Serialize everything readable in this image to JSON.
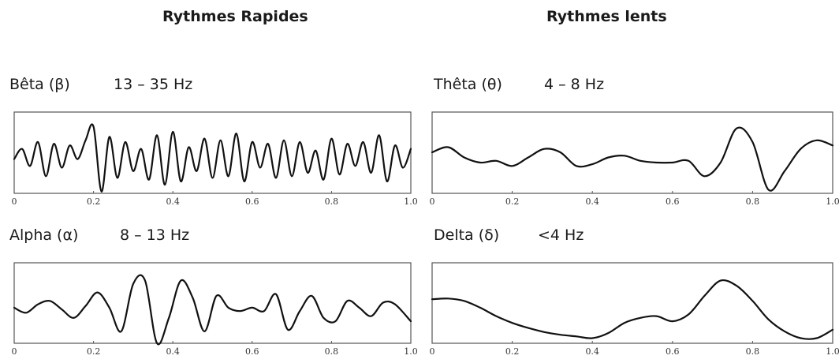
{
  "titles": {
    "fast": "Rythmes Rapides",
    "slow": "Rythmes lents"
  },
  "bands": [
    {
      "name": "Bêta (β)",
      "range": "13 – 35 Hz"
    },
    {
      "name": "Thêta (θ)",
      "range": "4 – 8 Hz"
    },
    {
      "name": "Alpha (α)",
      "range": "8 – 13 Hz"
    },
    {
      "name": "Delta (δ)",
      "range": "<4 Hz"
    }
  ],
  "chart_data": [
    {
      "type": "line",
      "band": "beta",
      "xlim": [
        0,
        1.0
      ],
      "x_ticks": [
        "0",
        "0.2",
        "0.4",
        "0.6",
        "0.8",
        "1.0"
      ],
      "x": [
        0,
        0.02,
        0.04,
        0.06,
        0.08,
        0.1,
        0.12,
        0.14,
        0.16,
        0.18,
        0.2,
        0.22,
        0.24,
        0.26,
        0.28,
        0.3,
        0.32,
        0.34,
        0.36,
        0.38,
        0.4,
        0.42,
        0.44,
        0.46,
        0.48,
        0.5,
        0.52,
        0.54,
        0.56,
        0.58,
        0.6,
        0.62,
        0.64,
        0.66,
        0.68,
        0.7,
        0.72,
        0.74,
        0.76,
        0.78,
        0.8,
        0.82,
        0.84,
        0.86,
        0.88,
        0.9,
        0.92,
        0.94,
        0.96,
        0.98,
        1.0
      ],
      "y": [
        0.05,
        0.35,
        -0.15,
        0.55,
        -0.45,
        0.5,
        -0.2,
        0.45,
        0.05,
        0.6,
        1.0,
        -0.9,
        0.7,
        -0.5,
        0.55,
        -0.3,
        0.35,
        -0.55,
        0.75,
        -0.7,
        0.85,
        -0.6,
        0.4,
        -0.3,
        0.65,
        -0.5,
        0.6,
        -0.45,
        0.8,
        -0.6,
        0.55,
        -0.2,
        0.5,
        -0.5,
        0.6,
        -0.45,
        0.55,
        -0.35,
        0.3,
        -0.55,
        0.65,
        -0.4,
        0.5,
        -0.15,
        0.55,
        -0.35,
        0.75,
        -0.6,
        0.45,
        -0.2,
        0.35
      ]
    },
    {
      "type": "line",
      "band": "theta",
      "xlim": [
        0,
        1.0
      ],
      "x_ticks": [
        "0",
        "0.2",
        "0.4",
        "0.6",
        "0.8",
        "1.0"
      ],
      "x": [
        0,
        0.04,
        0.08,
        0.12,
        0.16,
        0.2,
        0.24,
        0.28,
        0.32,
        0.36,
        0.4,
        0.44,
        0.48,
        0.52,
        0.56,
        0.6,
        0.64,
        0.68,
        0.72,
        0.76,
        0.8,
        0.84,
        0.88,
        0.92,
        0.96,
        1.0
      ],
      "y": [
        0.25,
        0.4,
        0.1,
        -0.05,
        0.0,
        -0.15,
        0.1,
        0.35,
        0.25,
        -0.15,
        -0.1,
        0.1,
        0.15,
        0.0,
        -0.05,
        -0.05,
        0.0,
        -0.45,
        -0.05,
        0.95,
        0.55,
        -0.85,
        -0.3,
        0.35,
        0.6,
        0.45
      ]
    },
    {
      "type": "line",
      "band": "alpha",
      "xlim": [
        0,
        1.0
      ],
      "x_ticks": [
        "0",
        "0.2",
        "0.4",
        "0.6",
        "0.8",
        "1.0"
      ],
      "x": [
        0,
        0.03,
        0.06,
        0.09,
        0.12,
        0.15,
        0.18,
        0.21,
        0.24,
        0.27,
        0.3,
        0.33,
        0.36,
        0.39,
        0.42,
        0.45,
        0.48,
        0.51,
        0.54,
        0.57,
        0.6,
        0.63,
        0.66,
        0.69,
        0.72,
        0.75,
        0.78,
        0.81,
        0.84,
        0.87,
        0.9,
        0.93,
        0.96,
        1.0
      ],
      "y": [
        0.1,
        -0.05,
        0.2,
        0.3,
        0.05,
        -0.2,
        0.15,
        0.55,
        0.1,
        -0.6,
        0.8,
        0.9,
        -0.95,
        -0.2,
        0.9,
        0.4,
        -0.6,
        0.45,
        0.1,
        0.0,
        0.1,
        0.0,
        0.5,
        -0.55,
        0.0,
        0.45,
        -0.2,
        -0.3,
        0.3,
        0.1,
        -0.15,
        0.25,
        0.2,
        -0.3
      ]
    },
    {
      "type": "line",
      "band": "delta",
      "xlim": [
        0,
        1.0
      ],
      "x_ticks": [
        "0",
        "0.2",
        "0.4",
        "0.6",
        "0.8",
        "1.0"
      ],
      "x": [
        0,
        0.04,
        0.08,
        0.12,
        0.16,
        0.2,
        0.24,
        0.28,
        0.32,
        0.36,
        0.4,
        0.44,
        0.48,
        0.52,
        0.56,
        0.6,
        0.64,
        0.68,
        0.72,
        0.76,
        0.8,
        0.84,
        0.88,
        0.92,
        0.96,
        1.0
      ],
      "y": [
        0.35,
        0.37,
        0.3,
        0.1,
        -0.15,
        -0.35,
        -0.5,
        -0.62,
        -0.7,
        -0.75,
        -0.8,
        -0.65,
        -0.35,
        -0.2,
        -0.15,
        -0.3,
        -0.1,
        0.45,
        0.9,
        0.75,
        0.3,
        -0.25,
        -0.6,
        -0.8,
        -0.8,
        -0.55
      ]
    }
  ]
}
